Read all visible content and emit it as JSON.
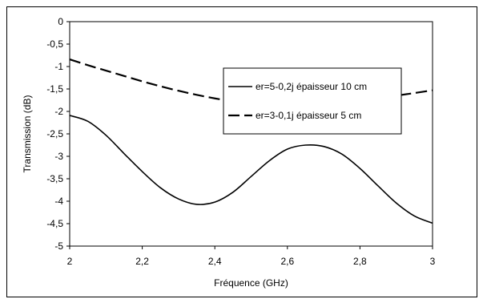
{
  "chart_data": {
    "type": "line",
    "title": "",
    "xlabel": "Fréquence (GHz)",
    "ylabel": "Transmission (dB)",
    "xlim": [
      2,
      3
    ],
    "ylim": [
      -5,
      0
    ],
    "x_ticks": [
      "2",
      "2,2",
      "2,4",
      "2,6",
      "2,8",
      "3"
    ],
    "x_tick_values": [
      2,
      2.2,
      2.4,
      2.6,
      2.8,
      3
    ],
    "y_ticks": [
      "0",
      "-0,5",
      "-1",
      "-1,5",
      "-2",
      "-2,5",
      "-3",
      "-3,5",
      "-4",
      "-4,5",
      "-5"
    ],
    "y_tick_values": [
      0,
      -0.5,
      -1,
      -1.5,
      -2,
      -2.5,
      -3,
      -3.5,
      -4,
      -4.5,
      -5
    ],
    "grid": false,
    "legend": "inside-right",
    "series": [
      {
        "name": "er=5-0,2j épaisseur 10 cm",
        "style": "solid",
        "color": "#000000",
        "x": [
          2.0,
          2.05,
          2.1,
          2.15,
          2.2,
          2.25,
          2.3,
          2.35,
          2.4,
          2.45,
          2.5,
          2.55,
          2.6,
          2.65,
          2.7,
          2.75,
          2.8,
          2.85,
          2.9,
          2.95,
          3.0
        ],
        "y": [
          -2.09,
          -2.22,
          -2.53,
          -2.94,
          -3.34,
          -3.7,
          -3.95,
          -4.07,
          -4.02,
          -3.8,
          -3.45,
          -3.1,
          -2.84,
          -2.75,
          -2.78,
          -2.95,
          -3.27,
          -3.66,
          -4.04,
          -4.33,
          -4.49
        ]
      },
      {
        "name": "er=3-0,1j épaisseur 5 cm",
        "style": "dashed",
        "color": "#000000",
        "x": [
          2.0,
          2.05,
          2.1,
          2.15,
          2.2,
          2.25,
          2.3,
          2.35,
          2.4,
          2.45,
          2.5,
          2.55,
          2.6,
          2.65,
          2.7,
          2.75,
          2.8,
          2.85,
          2.9,
          2.95,
          3.0
        ],
        "y": [
          -0.84,
          -0.97,
          -1.09,
          -1.21,
          -1.33,
          -1.44,
          -1.54,
          -1.63,
          -1.71,
          -1.77,
          -1.81,
          -1.84,
          -1.85,
          -1.85,
          -1.83,
          -1.8,
          -1.76,
          -1.71,
          -1.65,
          -1.59,
          -1.53
        ]
      }
    ]
  }
}
